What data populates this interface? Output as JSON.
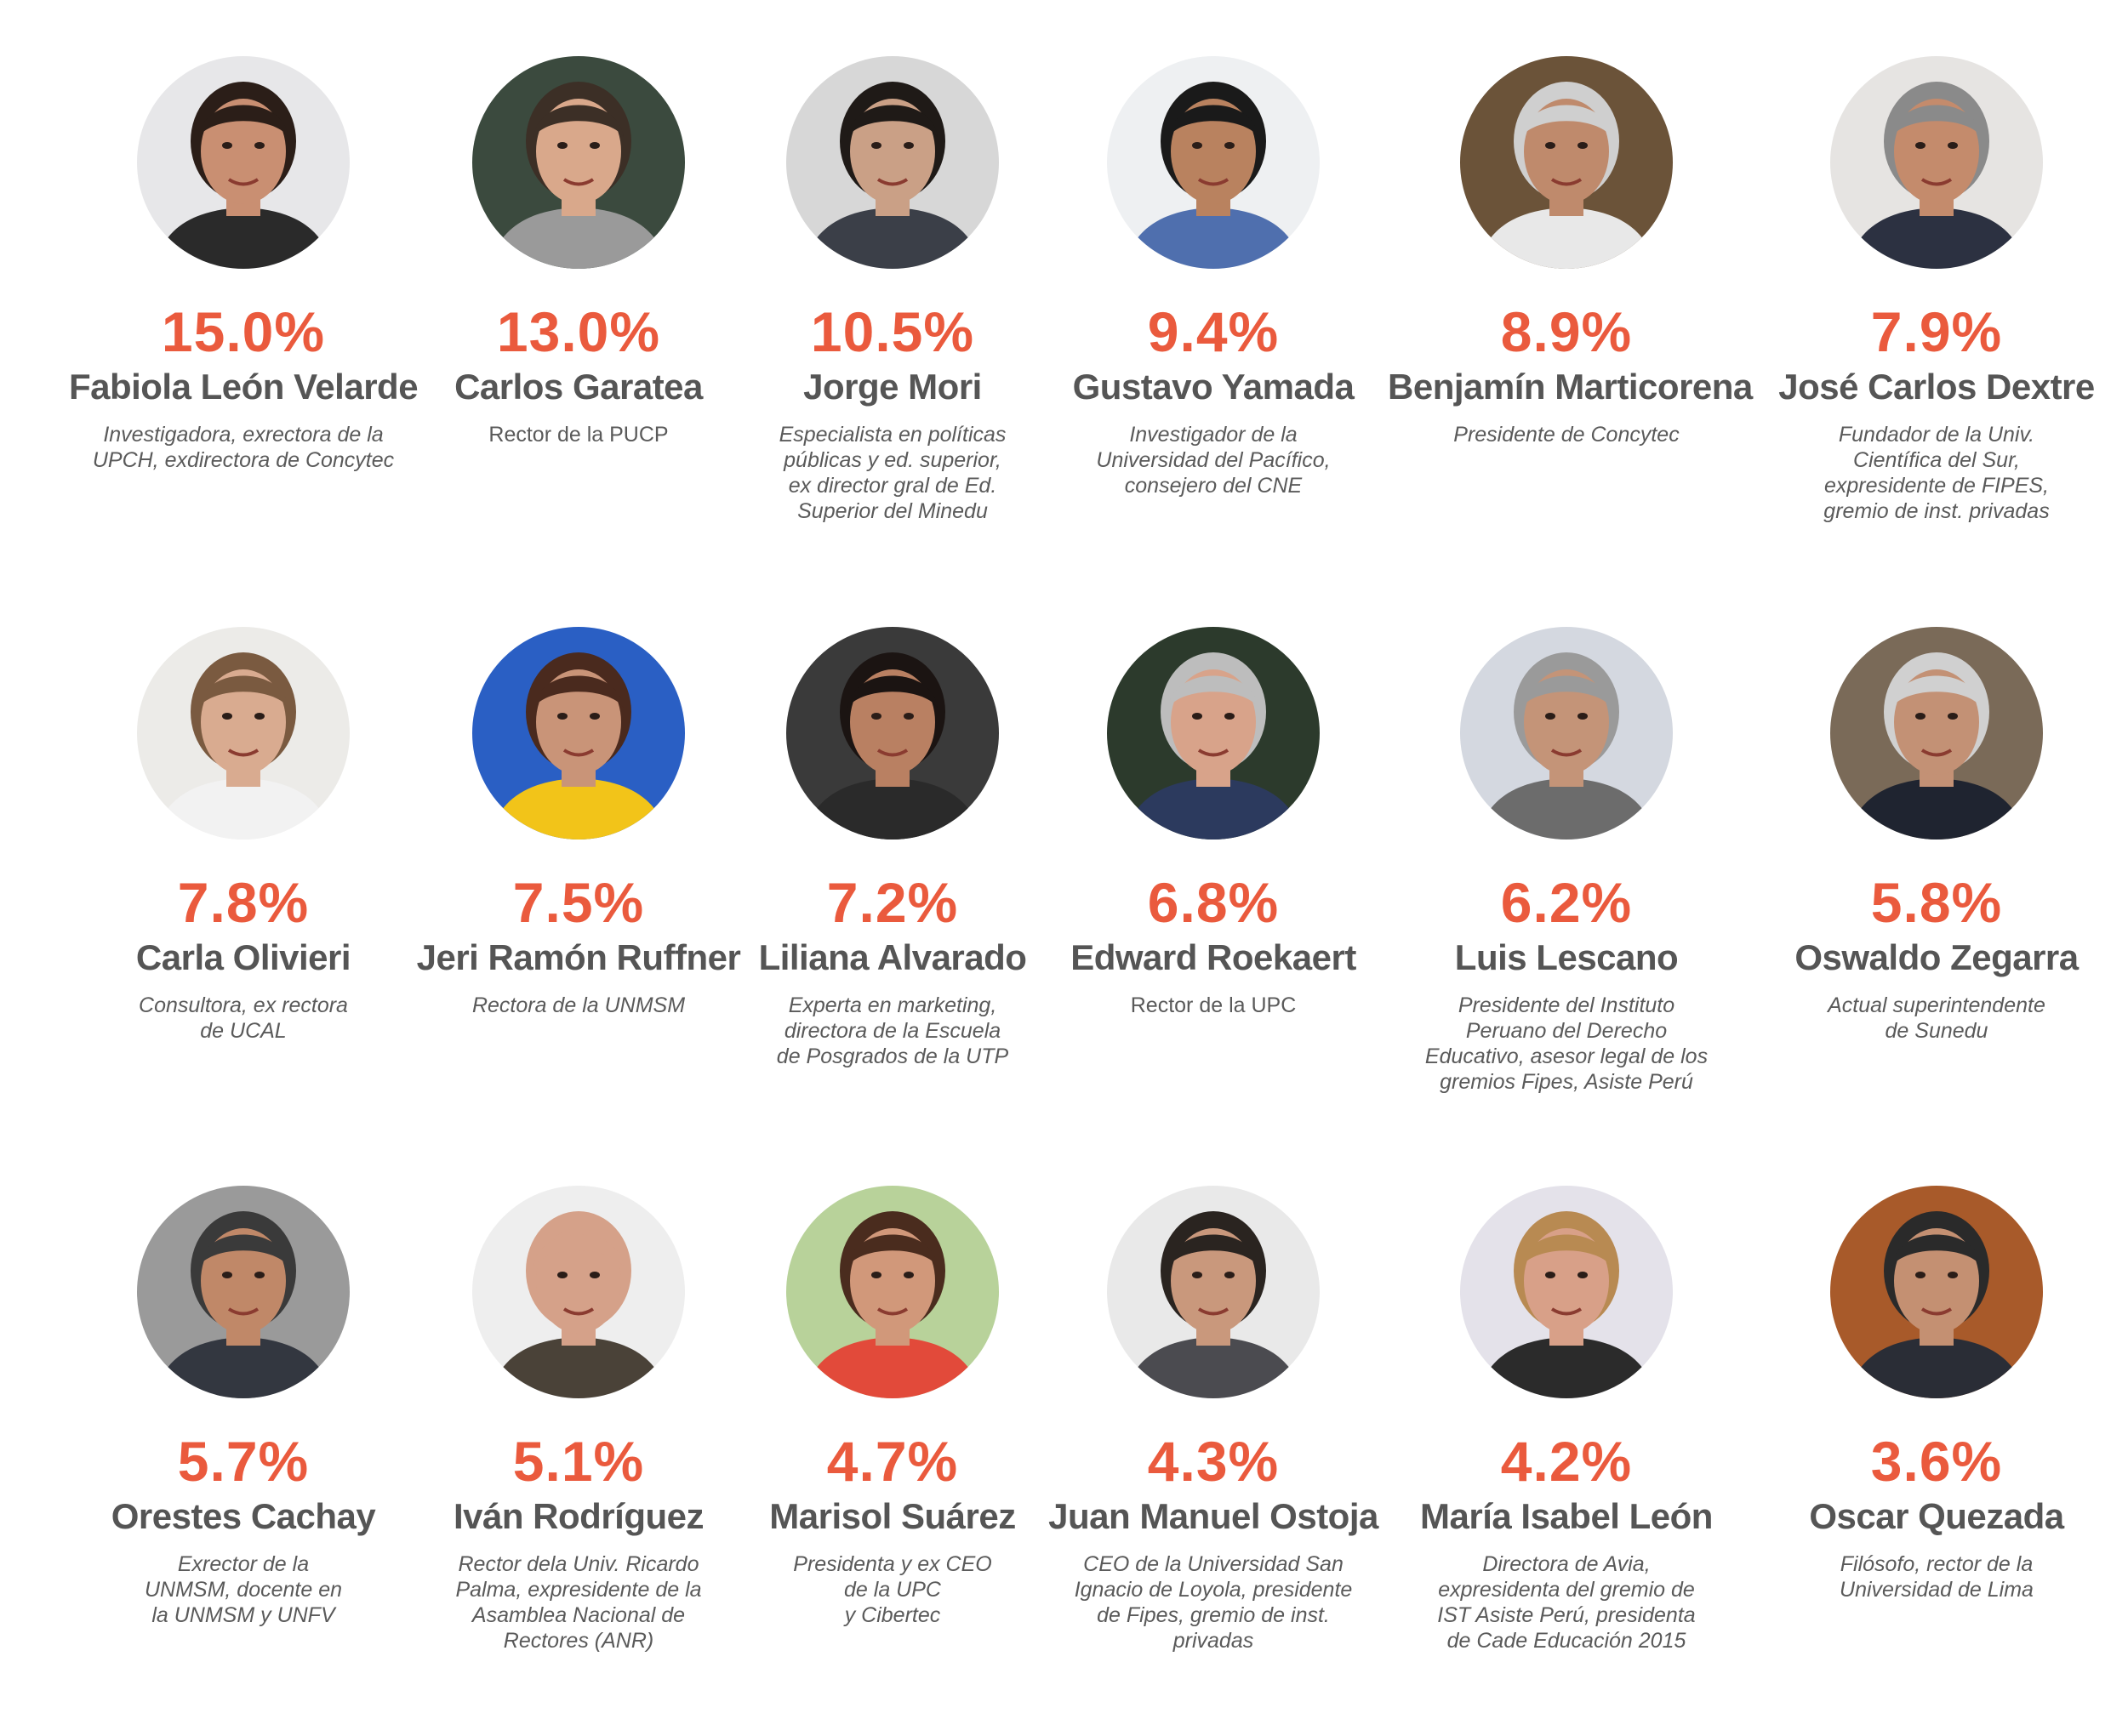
{
  "rows": [
    [
      {
        "pct": "15.0%",
        "name": "Fabiola León Velarde",
        "desc": "Investigadora, exrectora de la\nUPCH, exdirectora de Concytec",
        "photo": "portrait-woman-dark-hair",
        "bg": "#e7e7e9",
        "skin": "#c98f72",
        "hair": "#2b1e18",
        "shirt": "#2a2a2a"
      },
      {
        "pct": "13.0%",
        "name": "Carlos Garatea",
        "desc": "Rector de la PUCP",
        "photo": "portrait-man-glasses",
        "bg": "#3b4a3e",
        "skin": "#d9a88b",
        "hair": "#3c2f26",
        "shirt": "#9a9a9a"
      },
      {
        "pct": "10.5%",
        "name": "Jorge Mori",
        "desc": "Especialista en políticas\npúblicas y ed. superior,\nex director gral de Ed.\nSuperior del Minedu",
        "photo": "portrait-man-glasses-suit",
        "bg": "#d7d7d7",
        "skin": "#caa086",
        "hair": "#1f1a17",
        "shirt": "#3b3f48"
      },
      {
        "pct": "9.4%",
        "name": "Gustavo Yamada",
        "desc": "Investigador de la\nUniversidad del Pacífico,\nconsejero del CNE",
        "photo": "portrait-man-smiling",
        "bg": "#eef0f2",
        "skin": "#b9825f",
        "hair": "#1a1a1a",
        "shirt": "#4f6fae"
      },
      {
        "pct": "8.9%",
        "name": "Benjamín Marticorena",
        "desc": "Presidente de Concytec",
        "photo": "portrait-man-gray-hair",
        "bg": "#6b5339",
        "skin": "#bf8a6c",
        "hair": "#cfcfcf",
        "shirt": "#e8e8e8"
      },
      {
        "pct": "7.9%",
        "name": "José Carlos Dextre",
        "desc": "Fundador de la Univ.\nCientífica del Sur,\nexpresidente de FIPES,\ngremio de inst. privadas",
        "photo": "portrait-man-glasses-tie",
        "bg": "#e6e4e2",
        "skin": "#c48b6c",
        "hair": "#8a8a8a",
        "shirt": "#2c3141"
      }
    ],
    [
      {
        "pct": "7.8%",
        "name": "Carla Olivieri",
        "desc": "Consultora, ex rectora\nde UCAL",
        "photo": "portrait-woman-long-hair",
        "bg": "#ecebe8",
        "skin": "#d9ab90",
        "hair": "#7a5a40",
        "shirt": "#f2f2f2"
      },
      {
        "pct": "7.5%",
        "name": "Jeri Ramón Ruffner",
        "desc": "Rectora de la UNMSM",
        "photo": "portrait-woman-glasses",
        "bg": "#2a5fc4",
        "skin": "#c99478",
        "hair": "#4a2a1e",
        "shirt": "#f2c419"
      },
      {
        "pct": "7.2%",
        "name": "Liliana Alvarado",
        "desc": "Experta en marketing,\ndirectora de la Escuela\nde Posgrados de la UTP",
        "photo": "portrait-woman-short-hair",
        "bg": "#3a3a3a",
        "skin": "#b98062",
        "hair": "#1b1412",
        "shirt": "#2a2a2a"
      },
      {
        "pct": "6.8%",
        "name": "Edward Roekaert",
        "desc": "Rector de la UPC",
        "photo": "portrait-man-suit",
        "bg": "#2c3a2c",
        "skin": "#d8a38a",
        "hair": "#bdbdbd",
        "shirt": "#2c3a5e"
      },
      {
        "pct": "6.2%",
        "name": "Luis Lescano",
        "desc": "Presidente del Instituto\nPeruano del Derecho\nEducativo, asesor legal de los\ngremios Fipes, Asiste Perú",
        "photo": "portrait-man-glasses-suit",
        "bg": "#d4d8e0",
        "skin": "#c49478",
        "hair": "#9a9a9a",
        "shirt": "#6c6c6c"
      },
      {
        "pct": "5.8%",
        "name": "Oswaldo Zegarra",
        "desc": "Actual superintendente\nde Sunedu",
        "photo": "portrait-man-glasses-suit",
        "bg": "#7a6a58",
        "skin": "#c39175",
        "hair": "#d0d0d0",
        "shirt": "#1f2430"
      }
    ],
    [
      {
        "pct": "5.7%",
        "name": "Orestes Cachay",
        "desc": "Exrector de la\nUNMSM, docente en\nla UNMSM y UNFV",
        "photo": "portrait-man-suit",
        "bg": "#9a9a9a",
        "skin": "#c08868",
        "hair": "#3a3a3a",
        "shirt": "#333740"
      },
      {
        "pct": "5.1%",
        "name": "Iván Rodríguez",
        "desc": "Rector dela Univ. Ricardo\nPalma, expresidente de la\nAsamblea Nacional de\nRectores (ANR)",
        "photo": "portrait-man-bald",
        "bg": "#eeeeee",
        "skin": "#d5a189",
        "hair": "#d5a189",
        "shirt": "#4a4238"
      },
      {
        "pct": "4.7%",
        "name": "Marisol Suárez",
        "desc": "Presidenta y ex CEO\nde la UPC\ny Cibertec",
        "photo": "portrait-woman-smiling",
        "bg": "#b8d29a",
        "skin": "#d1987a",
        "hair": "#4a2c1e",
        "shirt": "#e24a3a"
      },
      {
        "pct": "4.3%",
        "name": "Juan Manuel Ostoja",
        "desc": "CEO de la Universidad San\nIgnacio de Loyola, presidente\nde Fipes, gremio de inst.\nprivadas",
        "photo": "portrait-man-beard",
        "bg": "#e9e9e9",
        "skin": "#c9987c",
        "hair": "#2a2420",
        "shirt": "#4b4b50"
      },
      {
        "pct": "4.2%",
        "name": "María Isabel León",
        "desc": "Directora de Avia,\nexpresidenta del gremio de\nIST Asiste Perú, presidenta\nde Cade Educación 2015",
        "photo": "portrait-woman-blonde",
        "bg": "#e4e2ea",
        "skin": "#d8a088",
        "hair": "#b88a52",
        "shirt": "#2b2b2b"
      },
      {
        "pct": "3.6%",
        "name": "Oscar Quezada",
        "desc": "Filósofo, rector de la\nUniversidad de Lima",
        "photo": "portrait-man-suit",
        "bg": "#a85a2a",
        "skin": "#c49072",
        "hair": "#2a2a2a",
        "shirt": "#2a2d36"
      }
    ]
  ]
}
